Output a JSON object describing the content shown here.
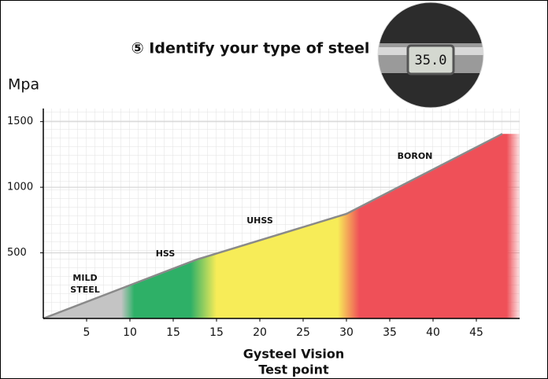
{
  "chart_data": {
    "type": "area",
    "title": "⑤ Identify your type of steel",
    "ylabel": "Mpa",
    "xlabel": [
      "Gysteel Vision",
      "Test point"
    ],
    "x": [
      0,
      3.55,
      7.0,
      10.6
    ],
    "values": [
      0,
      450,
      797,
      1407
    ],
    "line_color": "#8a8a8a",
    "xlim": [
      0,
      11
    ],
    "xticks": [
      {
        "value": 1,
        "label": "5"
      },
      {
        "value": 2,
        "label": "10"
      },
      {
        "value": 3,
        "label": "15"
      },
      {
        "value": 4,
        "label": "15"
      },
      {
        "value": 5,
        "label": "20"
      },
      {
        "value": 6,
        "label": "25"
      },
      {
        "value": 7,
        "label": "30"
      },
      {
        "value": 8,
        "label": "35"
      },
      {
        "value": 9,
        "label": "40"
      },
      {
        "value": 10,
        "label": "45"
      }
    ],
    "ylim": [
      0,
      1600
    ],
    "yticks": [
      500,
      1000,
      1500
    ],
    "grid": true,
    "zones": [
      {
        "label": [
          "MILD",
          "STEEL"
        ],
        "start": 0,
        "end": 1.8,
        "color": "#c4c4c4"
      },
      {
        "label": [
          "HSS"
        ],
        "start": 2.1,
        "end": 3.4,
        "color": "#2eb067"
      },
      {
        "label": [
          "UHSS"
        ],
        "start": 4.0,
        "end": 6.8,
        "color": "#f7ec58"
      },
      {
        "label": [
          "BORON"
        ],
        "start": 7.3,
        "end": 10.7,
        "color": "#ef5058"
      }
    ],
    "photo_reading": "35.0"
  }
}
